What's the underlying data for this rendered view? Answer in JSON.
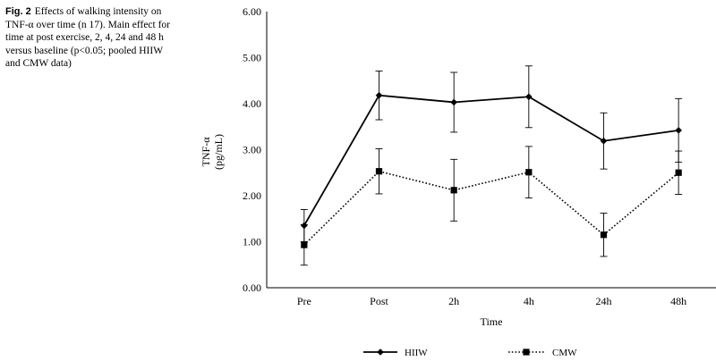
{
  "caption": {
    "label": "Fig. 2",
    "text": "Effects of walking intensity on TNF-α over time (n 17). Main effect for time at post exercise, 2, 4, 24 and 48 h versus baseline (p<0.05; pooled HIIW and CMW data)"
  },
  "chart_data": {
    "type": "line",
    "title": "",
    "xlabel": "Time",
    "ylabel": "TNF-α",
    "ylabel_unit": "(pg/mL)",
    "categories": [
      "Pre",
      "Post",
      "2h",
      "4h",
      "24h",
      "48h"
    ],
    "ylim": [
      0,
      6
    ],
    "yticks": [
      "0.00",
      "1.00",
      "2.00",
      "3.00",
      "4.00",
      "5.00",
      "6.00"
    ],
    "grid": false,
    "legend_position": "bottom",
    "series": [
      {
        "name": "HIIW",
        "marker": "diamond",
        "line_style": "solid",
        "values": [
          1.35,
          4.18,
          4.03,
          4.15,
          3.19,
          3.42
        ],
        "error": [
          0.35,
          0.53,
          0.65,
          0.67,
          0.61,
          0.69
        ]
      },
      {
        "name": "CMW",
        "marker": "square",
        "line_style": "dotted",
        "values": [
          0.93,
          2.53,
          2.12,
          2.51,
          1.15,
          2.5
        ],
        "error": [
          0.44,
          0.49,
          0.67,
          0.56,
          0.47,
          0.47
        ]
      }
    ]
  }
}
